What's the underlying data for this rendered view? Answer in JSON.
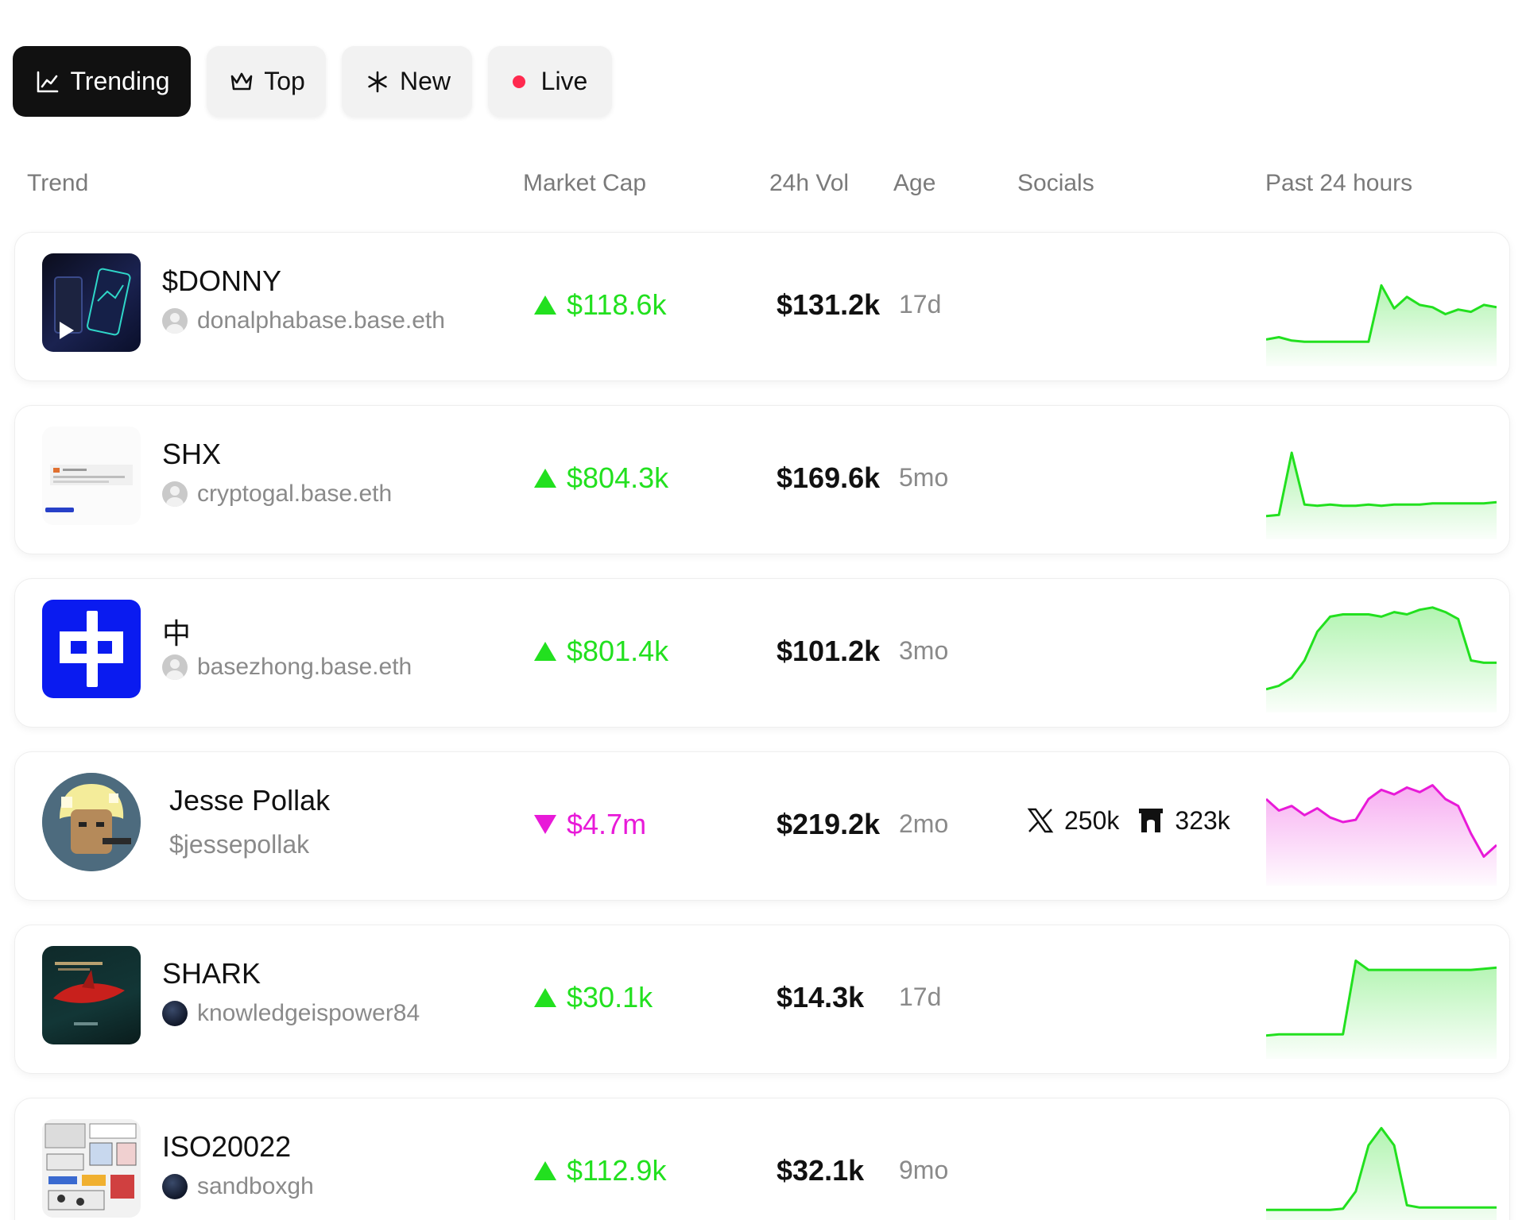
{
  "tabs": [
    {
      "label": "Trending",
      "icon": "chart-line-icon",
      "active": true
    },
    {
      "label": "Top",
      "icon": "crown-icon",
      "active": false
    },
    {
      "label": "New",
      "icon": "asterisk-icon",
      "active": false
    },
    {
      "label": "Live",
      "icon": "live-dot-icon",
      "active": false
    }
  ],
  "columns": {
    "trend": "Trend",
    "market_cap": "Market Cap",
    "volume": "24h Vol",
    "age": "Age",
    "socials": "Socials",
    "past": "Past 24 hours"
  },
  "colors": {
    "up": "#22e01f",
    "down": "#e81ad8",
    "live": "#ff2a4f"
  },
  "rows": [
    {
      "name": "$DONNY",
      "owner": "donalphabase.base.eth",
      "market_cap": "$118.6k",
      "direction": "up",
      "volume": "$131.2k",
      "age": "17d",
      "spark": [
        8,
        10,
        7,
        6,
        6,
        6,
        6,
        6,
        6,
        55,
        35,
        45,
        38,
        36,
        30,
        34,
        32,
        38,
        36
      ]
    },
    {
      "name": "SHX",
      "owner": "cryptogal.base.eth",
      "market_cap": "$804.3k",
      "direction": "up",
      "volume": "$169.6k",
      "age": "5mo",
      "spark": [
        5,
        6,
        60,
        15,
        14,
        15,
        14,
        14,
        15,
        14,
        15,
        15,
        15,
        16,
        16,
        16,
        16,
        16,
        17
      ]
    },
    {
      "name": "中",
      "owner": "basezhong.base.eth",
      "market_cap": "$801.4k",
      "direction": "up",
      "volume": "$101.2k",
      "age": "3mo",
      "spark": [
        5,
        8,
        15,
        30,
        55,
        68,
        70,
        70,
        70,
        68,
        72,
        70,
        74,
        76,
        72,
        66,
        30,
        28,
        28
      ]
    },
    {
      "name": "Jesse Pollak",
      "owner": "$jessepollak",
      "market_cap": "$4.7m",
      "direction": "down",
      "volume": "$219.2k",
      "age": "2mo",
      "socials": [
        {
          "icon": "x-logo-icon",
          "value": "250k"
        },
        {
          "icon": "farcaster-arch-icon",
          "value": "323k"
        }
      ],
      "spark": [
        60,
        50,
        54,
        46,
        52,
        44,
        40,
        42,
        60,
        68,
        64,
        70,
        66,
        72,
        60,
        54,
        30,
        10,
        20
      ]
    },
    {
      "name": "SHARK",
      "owner": "knowledgeispower84",
      "market_cap": "$30.1k",
      "direction": "up",
      "volume": "$14.3k",
      "age": "17d",
      "spark": [
        5,
        6,
        6,
        6,
        6,
        6,
        6,
        70,
        62,
        62,
        62,
        62,
        62,
        62,
        62,
        62,
        62,
        63,
        64
      ]
    },
    {
      "name": "ISO20022",
      "owner": "sandboxgh",
      "market_cap": "$112.9k",
      "direction": "up",
      "volume": "$32.1k",
      "age": "9mo",
      "spark": [
        4,
        4,
        4,
        4,
        4,
        4,
        5,
        20,
        60,
        75,
        60,
        8,
        6,
        6,
        6,
        6,
        6,
        6,
        6
      ]
    }
  ]
}
